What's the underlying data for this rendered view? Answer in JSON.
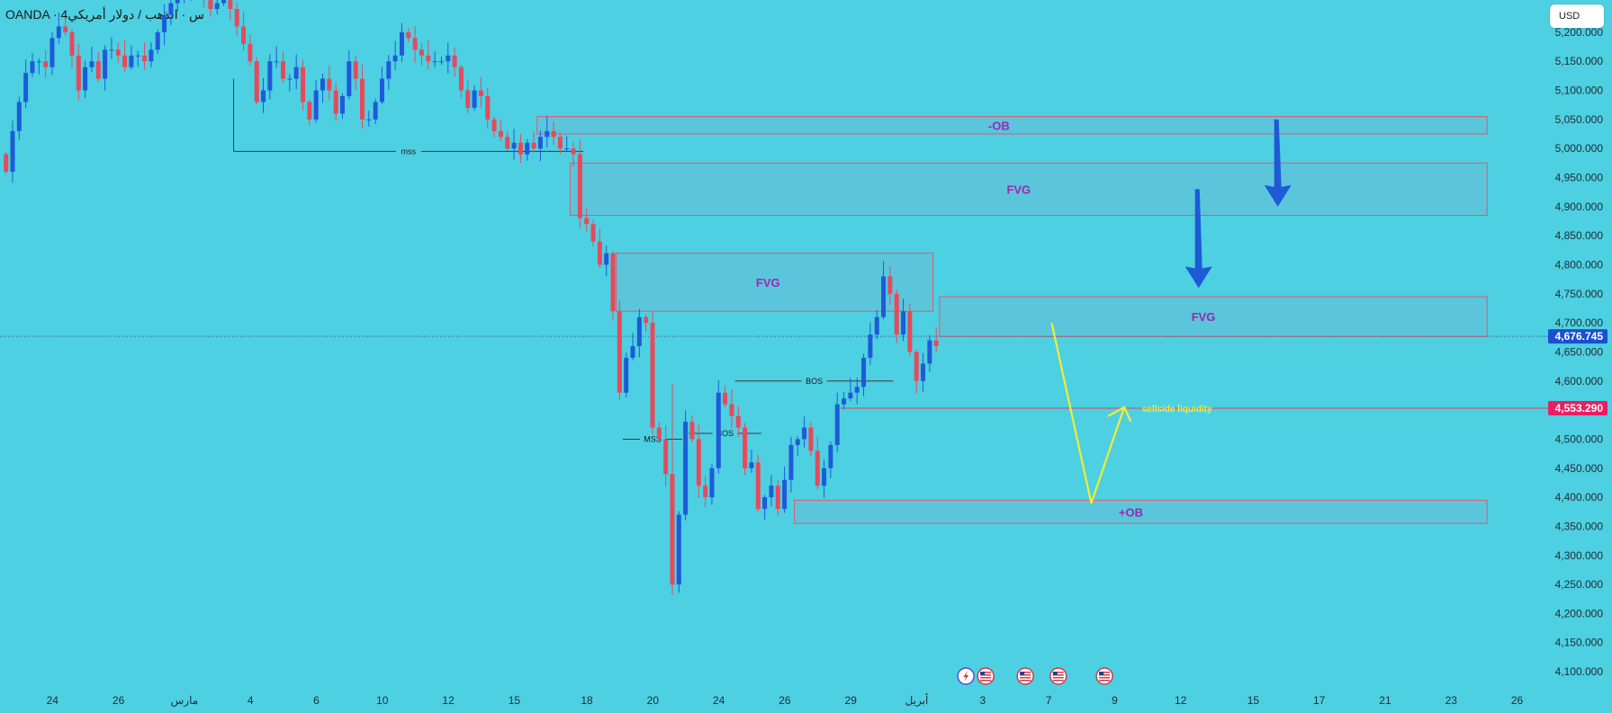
{
  "header": {
    "symbol": "OANDA · 4س · الذهب / دولار أمريكي",
    "currency": "USD"
  },
  "colors": {
    "background": "#4dd0e1",
    "bull": "#1e5bd8",
    "bear": "#e8495b",
    "zone_fill": "#5ec3da",
    "zone_border": "#e05a6a",
    "zone_label": "#9c27b0",
    "arrow": "#1e5ad6",
    "path": "#f4ec34",
    "price_tag": "#1b4fd0",
    "level_tag": "#e91e63"
  },
  "chart_data": {
    "type": "candlestick",
    "y_range": [
      4080000,
      5240000
    ],
    "y_ticks": [
      {
        "value": 5200000,
        "label": "5,200.000"
      },
      {
        "value": 5150000,
        "label": "5,150.000"
      },
      {
        "value": 5100000,
        "label": "5,100.000"
      },
      {
        "value": 5050000,
        "label": "5,050.000"
      },
      {
        "value": 5000000,
        "label": "5,000.000"
      },
      {
        "value": 4950000,
        "label": "4,950.000"
      },
      {
        "value": 4900000,
        "label": "4,900.000"
      },
      {
        "value": 4850000,
        "label": "4,850.000"
      },
      {
        "value": 4800000,
        "label": "4,800.000"
      },
      {
        "value": 4750000,
        "label": "4,750.000"
      },
      {
        "value": 4700000,
        "label": "4,700.000"
      },
      {
        "value": 4650000,
        "label": "4,650.000"
      },
      {
        "value": 4600000,
        "label": "4,600.000"
      },
      {
        "value": 4550000,
        "label": "4,550.000"
      },
      {
        "value": 4500000,
        "label": "4,500.000"
      },
      {
        "value": 4450000,
        "label": "4,450.000"
      },
      {
        "value": 4400000,
        "label": "4,400.000"
      },
      {
        "value": 4350000,
        "label": "4,350.000"
      },
      {
        "value": 4300000,
        "label": "4,300.000"
      },
      {
        "value": 4250000,
        "label": "4,250.000"
      },
      {
        "value": 4200000,
        "label": "4,200.000"
      },
      {
        "value": 4150000,
        "label": "4,150.000"
      },
      {
        "value": 4100000,
        "label": "4,100.000"
      }
    ],
    "x_ticks": [
      {
        "label": "24",
        "bar": 7
      },
      {
        "label": "26",
        "bar": 17
      },
      {
        "label": "مارس",
        "bar": 27
      },
      {
        "label": "4",
        "bar": 37
      },
      {
        "label": "6",
        "bar": 47
      },
      {
        "label": "10",
        "bar": 57
      },
      {
        "label": "12",
        "bar": 67
      },
      {
        "label": "15",
        "bar": 77
      },
      {
        "label": "18",
        "bar": 88
      },
      {
        "label": "20",
        "bar": 98
      },
      {
        "label": "24",
        "bar": 108
      },
      {
        "label": "26",
        "bar": 118
      },
      {
        "label": "29",
        "bar": 128
      },
      {
        "label": "أبريل",
        "bar": 138
      },
      {
        "label": "3",
        "bar": 148
      },
      {
        "label": "7",
        "bar": 158
      },
      {
        "label": "9",
        "bar": 168
      },
      {
        "label": "12",
        "bar": 178
      },
      {
        "label": "15",
        "bar": 189
      },
      {
        "label": "17",
        "bar": 199
      },
      {
        "label": "21",
        "bar": 209
      },
      {
        "label": "23",
        "bar": 219
      },
      {
        "label": "26",
        "bar": 229
      }
    ],
    "current_price": {
      "value": 4676745,
      "label": "4,676.745"
    },
    "level_price": {
      "value": 4553290,
      "label": "4,553.290"
    },
    "closes": [
      4960,
      5030,
      5080,
      5130,
      5150,
      5150,
      5140,
      5190,
      5210,
      5200,
      5160,
      5100,
      5140,
      5150,
      5120,
      5170,
      5170,
      5160,
      5140,
      5160,
      5160,
      5150,
      5170,
      5200,
      5230,
      5250,
      5260,
      5260,
      5280,
      5300,
      5260,
      5240,
      5250,
      5260,
      5240,
      5210,
      5180,
      5150,
      5080,
      5100,
      5150,
      5150,
      5120,
      5120,
      5140,
      5080,
      5050,
      5100,
      5120,
      5100,
      5060,
      5090,
      5150,
      5120,
      5050,
      5050,
      5080,
      5120,
      5150,
      5160,
      5200,
      5190,
      5170,
      5160,
      5150,
      5150,
      5150,
      5160,
      5140,
      5100,
      5070,
      5100,
      5090,
      5050,
      5030,
      5020,
      5000,
      5010,
      4990,
      5010,
      5000,
      5020,
      5030,
      5020,
      5000,
      5000,
      4990,
      4880,
      4870,
      4840,
      4800,
      4820,
      4720,
      4580,
      4640,
      4660,
      4710,
      4700,
      4520,
      4500,
      4440,
      4250,
      4370,
      4530,
      4500,
      4420,
      4400,
      4450,
      4580,
      4560,
      4540,
      4520,
      4450,
      4460,
      4380,
      4400,
      4420,
      4380,
      4430,
      4490,
      4500,
      4520,
      4480,
      4420,
      4450,
      4490,
      4560,
      4570,
      4580,
      4590,
      4640,
      4680,
      4710,
      4780,
      4750,
      4680,
      4720,
      4650,
      4600,
      4630,
      4670,
      4660
    ],
    "zones": [
      {
        "label": "-OB",
        "top": 5055000,
        "bottom": 5025000,
        "from_bar": 81,
        "to_bar": 225,
        "label_bar": 151
      },
      {
        "label": "FVG",
        "top": 4975000,
        "bottom": 4885000,
        "from_bar": 86,
        "to_bar": 225,
        "label_bar": 154
      },
      {
        "label": "FVG",
        "top": 4820000,
        "bottom": 4720000,
        "from_bar": 93,
        "to_bar": 141,
        "label_bar": 116
      },
      {
        "label": "FVG",
        "top": 4745000,
        "bottom": 4676745,
        "from_bar": 142,
        "to_bar": 225,
        "label_bar": 182
      },
      {
        "label": "+OB",
        "top": 4395000,
        "bottom": 4355000,
        "from_bar": 120,
        "to_bar": 225,
        "label_bar": 171
      }
    ],
    "structure_lines": [
      {
        "label": "mss",
        "value": 4995000,
        "from_bar": 35,
        "to_bar": 88
      },
      {
        "label": "BOS",
        "value": 4600000,
        "from_bar": 111,
        "to_bar": 135
      },
      {
        "label": "BOS",
        "value": 4510000,
        "from_bar": 104,
        "to_bar": 115
      },
      {
        "label": "MSS",
        "value": 4500000,
        "from_bar": 94,
        "to_bar": 103
      }
    ],
    "sellside_label": "sellside liquidity",
    "arrows": [
      {
        "bar": 181,
        "from": 4930000,
        "to": 4760000
      },
      {
        "bar": 193,
        "from": 5050000,
        "to": 4900000
      }
    ],
    "projected_path": [
      {
        "bar": 159,
        "value": 4700000
      },
      {
        "bar": 165,
        "value": 4390000
      },
      {
        "bar": 170,
        "value": 4555000
      },
      {
        "bar": 171,
        "value": 4530000
      }
    ],
    "event_icons": [
      {
        "kind": "lightning",
        "bar": 146
      },
      {
        "kind": "us-flag",
        "bar": 149
      },
      {
        "kind": "us-flag",
        "bar": 155
      },
      {
        "kind": "us-flag",
        "bar": 160
      },
      {
        "kind": "us-flag",
        "bar": 167
      }
    ]
  }
}
